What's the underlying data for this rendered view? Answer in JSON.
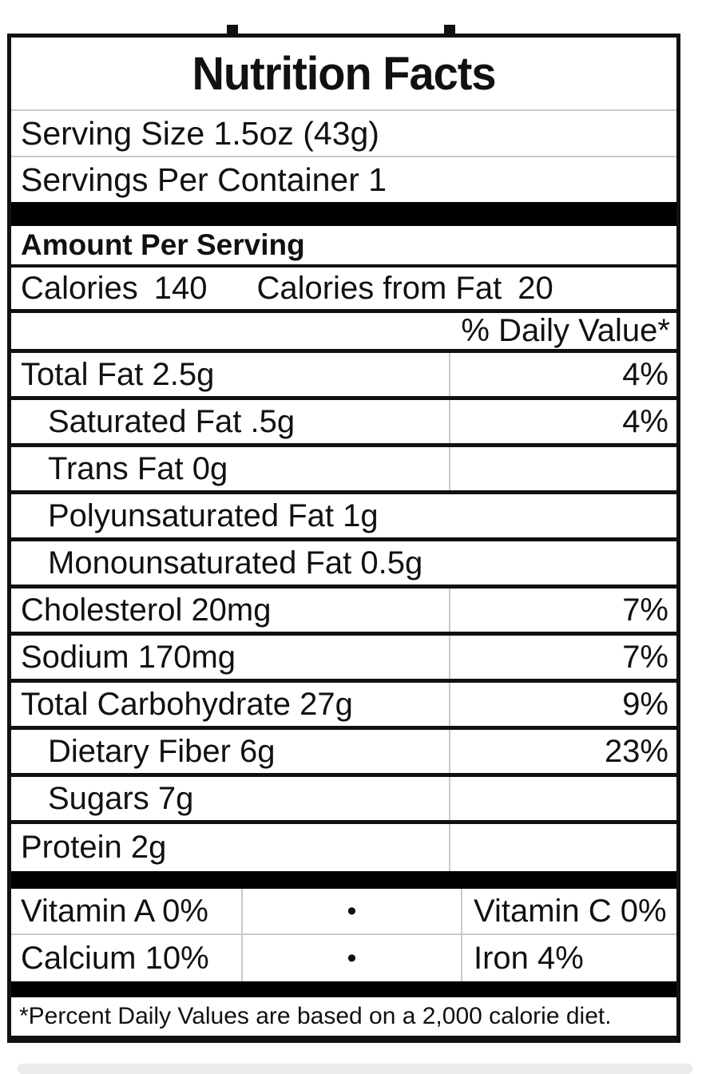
{
  "title": "Nutrition Facts",
  "serving": {
    "size_line": "Serving Size 1.5oz (43g)",
    "per_container_line": "Servings Per Container 1"
  },
  "amount_per_serving_label": "Amount Per Serving",
  "calories": {
    "label": "Calories",
    "value": "140",
    "from_fat_label": "Calories from Fat",
    "from_fat_value": "20"
  },
  "daily_value_header": "% Daily Value*",
  "nutrients": [
    {
      "label": "Total Fat 2.5g",
      "dv": "4%",
      "indent": false,
      "divider": true
    },
    {
      "label": "Saturated Fat .5g",
      "dv": "4%",
      "indent": true,
      "divider": true
    },
    {
      "label": "Trans Fat 0g",
      "dv": "",
      "indent": true,
      "divider": true
    },
    {
      "label": "Polyunsaturated Fat 1g",
      "dv": "",
      "indent": true,
      "divider": false
    },
    {
      "label": "Monounsaturated Fat 0.5g",
      "dv": "",
      "indent": true,
      "divider": false
    },
    {
      "label": "Cholesterol 20mg",
      "dv": "7%",
      "indent": false,
      "divider": true
    },
    {
      "label": "Sodium 170mg",
      "dv": "7%",
      "indent": false,
      "divider": true
    },
    {
      "label": "Total Carbohydrate 27g",
      "dv": "9%",
      "indent": false,
      "divider": true
    },
    {
      "label": "Dietary Fiber 6g",
      "dv": "23%",
      "indent": true,
      "divider": true
    },
    {
      "label": "Sugars 7g",
      "dv": "",
      "indent": true,
      "divider": true
    },
    {
      "label": "Protein 2g",
      "dv": "",
      "indent": false,
      "divider": true
    }
  ],
  "vitamins": [
    {
      "left": "Vitamin A 0%",
      "bullet": "•",
      "right": "Vitamin C 0%"
    },
    {
      "left": "Calcium 10%",
      "bullet": "•",
      "right": "Iron 4%"
    }
  ],
  "footnote": "*Percent Daily Values are based on a 2,000 calorie diet.",
  "colors": {
    "border": "#111111",
    "divider": "#c9c9c9",
    "background": "#ffffff",
    "text": "#111111"
  }
}
